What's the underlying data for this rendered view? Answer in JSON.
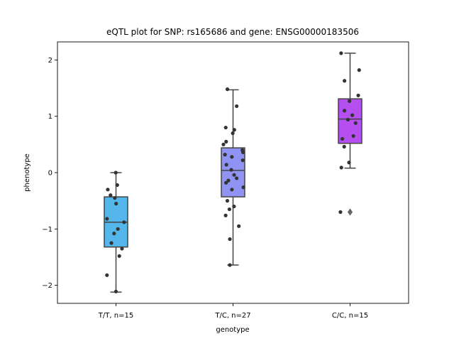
{
  "chart_data": {
    "type": "box",
    "title": "eQTL plot for SNP: rs165686 and gene: ENSG00000183506",
    "xlabel": "genotype",
    "ylabel": "phenotype",
    "ylim": [
      -2.32,
      2.32
    ],
    "yticks": [
      -2,
      -1,
      0,
      1,
      2
    ],
    "yticklabels": [
      "−2",
      "−1",
      "0",
      "1",
      "2"
    ],
    "grid": false,
    "categories": [
      "T/T, n=15",
      "T/C, n=27",
      "C/C, n=15"
    ],
    "colors": [
      "#54b6ea",
      "#8f93f4",
      "#b54ff0"
    ],
    "boxes": [
      {
        "q1": -1.32,
        "median": -0.88,
        "q3": -0.43,
        "whisker_low": -2.12,
        "whisker_high": 0.0,
        "outliers": []
      },
      {
        "q1": -0.43,
        "median": 0.04,
        "q3": 0.44,
        "whisker_low": -1.64,
        "whisker_high": 1.47,
        "outliers": []
      },
      {
        "q1": 0.52,
        "median": 0.95,
        "q3": 1.31,
        "whisker_low": 0.08,
        "whisker_high": 2.12,
        "outliers": [
          -0.7
        ]
      }
    ],
    "points": [
      {
        "group": 0,
        "values": [
          0.0,
          -0.22,
          -0.3,
          -0.4,
          -0.45,
          -0.55,
          -0.82,
          -0.88,
          -1.0,
          -1.08,
          -1.25,
          -1.35,
          -1.48,
          -1.82,
          -2.11
        ]
      },
      {
        "group": 1,
        "values": [
          1.48,
          1.18,
          0.8,
          0.76,
          0.7,
          0.55,
          0.5,
          0.4,
          0.36,
          0.32,
          0.28,
          0.22,
          0.14,
          0.05,
          -0.04,
          -0.1,
          -0.14,
          -0.18,
          -0.26,
          -0.3,
          -0.5,
          -0.6,
          -0.65,
          -0.76,
          -0.95,
          -1.18,
          -1.64
        ]
      },
      {
        "group": 2,
        "values": [
          2.12,
          1.82,
          1.63,
          1.37,
          1.27,
          1.1,
          1.02,
          0.94,
          0.88,
          0.65,
          0.6,
          0.46,
          0.18,
          0.09,
          -0.7
        ]
      }
    ]
  }
}
